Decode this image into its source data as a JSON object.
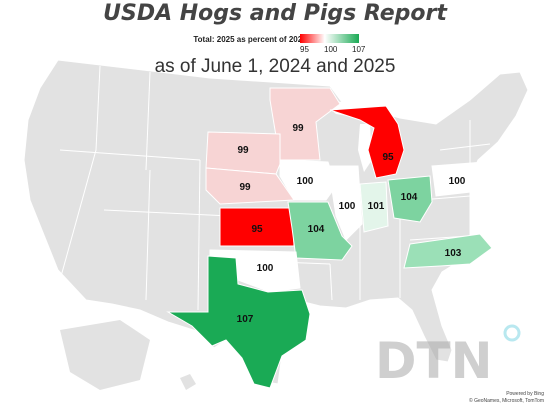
{
  "title": "USDA Hogs and Pigs Report",
  "legend": {
    "title": "Total: 2025 as percent of 2024",
    "ticks": [
      "95",
      "100",
      "107"
    ],
    "colors": {
      "low": "#ff0000",
      "mid": "#ffffff",
      "high": "#1aaa55"
    }
  },
  "subtitle": "as of June 1, 2024 and 2025",
  "states": [
    {
      "value": "99",
      "color": "#f7d4d4"
    },
    {
      "value": "99",
      "color": "#f7d4d4"
    },
    {
      "value": "99",
      "color": "#f7d4d4"
    },
    {
      "value": "95",
      "color": "#ff0000"
    },
    {
      "value": "100",
      "color": "#ffffff"
    },
    {
      "value": "100",
      "color": "#ffffff"
    },
    {
      "value": "101",
      "color": "#e3f5ea"
    },
    {
      "value": "104",
      "color": "#7dd3a0"
    },
    {
      "value": "100",
      "color": "#ffffff"
    },
    {
      "value": "95",
      "color": "#ff0000"
    },
    {
      "value": "104",
      "color": "#7dd3a0"
    },
    {
      "value": "103",
      "color": "#9be0b7"
    },
    {
      "value": "100",
      "color": "#ffffff"
    },
    {
      "value": "107",
      "color": "#1aaa55"
    }
  ],
  "watermark": "DTN",
  "credits": {
    "line1": "Powered by Bing",
    "line2": "© GeoNames, Microsoft, TomTom"
  }
}
